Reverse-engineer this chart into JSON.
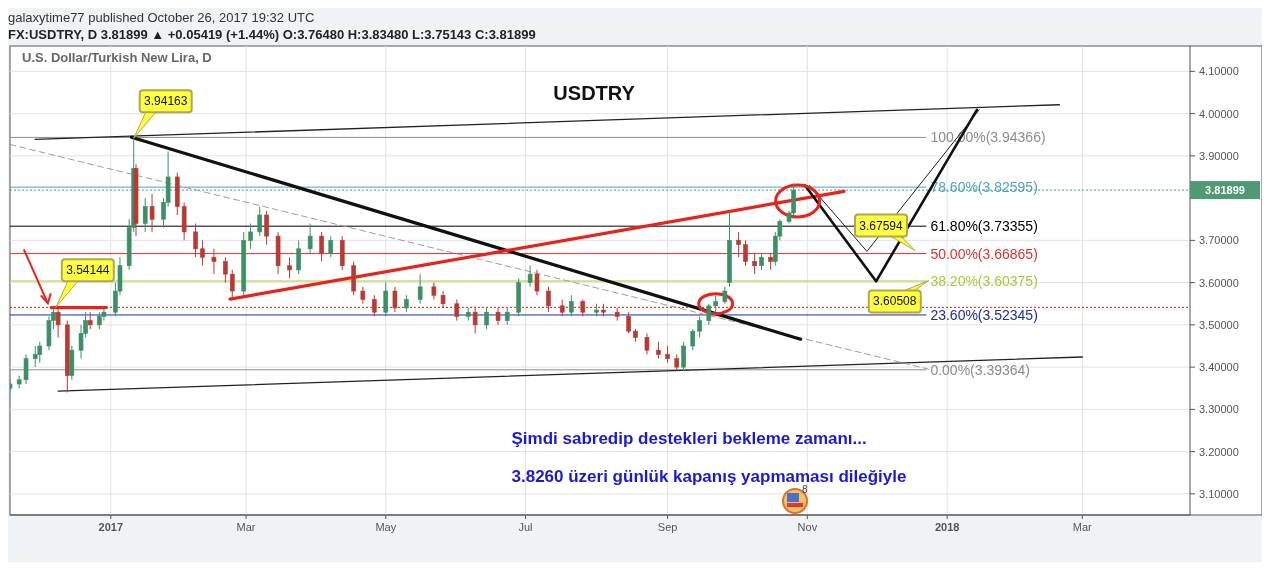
{
  "chart_data": {
    "type": "candlestick",
    "title": "USDTRY",
    "subtitle": "U.S. Dollar/Turkish New Lira, D",
    "x": [
      "2016-11-18",
      "2016-11-22",
      "2016-11-25",
      "2016-11-29",
      "2016-12-01",
      "2016-12-05",
      "2016-12-07",
      "2016-12-09",
      "2016-12-13",
      "2016-12-15",
      "2016-12-19",
      "2016-12-21",
      "2016-12-23",
      "2016-12-27",
      "2016-12-29",
      "2017-01-03",
      "2017-01-05",
      "2017-01-09",
      "2017-01-11",
      "2017-01-12",
      "2017-01-16",
      "2017-01-19",
      "2017-01-24",
      "2017-01-26",
      "2017-01-30",
      "2017-02-02",
      "2017-02-07",
      "2017-02-10",
      "2017-02-15",
      "2017-02-20",
      "2017-02-23",
      "2017-02-28",
      "2017-03-03",
      "2017-03-07",
      "2017-03-10",
      "2017-03-15",
      "2017-03-20",
      "2017-03-24",
      "2017-03-29",
      "2017-04-03",
      "2017-04-07",
      "2017-04-12",
      "2017-04-17",
      "2017-04-21",
      "2017-04-26",
      "2017-05-01",
      "2017-05-05",
      "2017-05-10",
      "2017-05-16",
      "2017-05-22",
      "2017-05-26",
      "2017-06-01",
      "2017-06-06",
      "2017-06-09",
      "2017-06-14",
      "2017-06-19",
      "2017-06-23",
      "2017-06-28",
      "2017-07-03",
      "2017-07-06",
      "2017-07-11",
      "2017-07-17",
      "2017-07-21",
      "2017-07-26",
      "2017-08-01",
      "2017-08-04",
      "2017-08-10",
      "2017-08-15",
      "2017-08-18",
      "2017-08-23",
      "2017-08-28",
      "2017-09-01",
      "2017-09-05",
      "2017-09-08",
      "2017-09-12",
      "2017-09-15",
      "2017-09-19",
      "2017-09-22",
      "2017-09-26",
      "2017-09-28",
      "2017-10-02",
      "2017-10-05",
      "2017-10-09",
      "2017-10-12",
      "2017-10-16",
      "2017-10-18",
      "2017-10-20",
      "2017-10-24",
      "2017-10-26"
    ],
    "ohlc": [
      [
        3.35,
        3.37,
        3.34,
        3.36
      ],
      [
        3.36,
        3.38,
        3.35,
        3.37
      ],
      [
        3.37,
        3.43,
        3.36,
        3.42
      ],
      [
        3.42,
        3.45,
        3.4,
        3.43
      ],
      [
        3.43,
        3.46,
        3.41,
        3.45
      ],
      [
        3.45,
        3.52,
        3.44,
        3.51
      ],
      [
        3.51,
        3.54,
        3.49,
        3.53
      ],
      [
        3.53,
        3.54,
        3.47,
        3.5
      ],
      [
        3.5,
        3.51,
        3.34,
        3.38
      ],
      [
        3.38,
        3.45,
        3.37,
        3.44
      ],
      [
        3.44,
        3.5,
        3.42,
        3.48
      ],
      [
        3.48,
        3.53,
        3.47,
        3.51
      ],
      [
        3.51,
        3.53,
        3.49,
        3.5
      ],
      [
        3.5,
        3.53,
        3.49,
        3.52
      ],
      [
        3.52,
        3.54,
        3.51,
        3.53
      ],
      [
        3.53,
        3.6,
        3.52,
        3.58
      ],
      [
        3.58,
        3.66,
        3.57,
        3.64
      ],
      [
        3.64,
        3.75,
        3.63,
        3.73
      ],
      [
        3.73,
        3.94,
        3.72,
        3.87
      ],
      [
        3.87,
        3.88,
        3.71,
        3.74
      ],
      [
        3.74,
        3.8,
        3.72,
        3.78
      ],
      [
        3.78,
        3.81,
        3.72,
        3.75
      ],
      [
        3.75,
        3.8,
        3.73,
        3.79
      ],
      [
        3.79,
        3.91,
        3.78,
        3.85
      ],
      [
        3.85,
        3.86,
        3.76,
        3.78
      ],
      [
        3.78,
        3.79,
        3.7,
        3.72
      ],
      [
        3.72,
        3.74,
        3.66,
        3.68
      ],
      [
        3.68,
        3.7,
        3.64,
        3.66
      ],
      [
        3.66,
        3.68,
        3.62,
        3.65
      ],
      [
        3.65,
        3.66,
        3.6,
        3.62
      ],
      [
        3.62,
        3.63,
        3.56,
        3.58
      ],
      [
        3.58,
        3.72,
        3.57,
        3.7
      ],
      [
        3.7,
        3.74,
        3.68,
        3.72
      ],
      [
        3.72,
        3.78,
        3.71,
        3.76
      ],
      [
        3.76,
        3.77,
        3.69,
        3.71
      ],
      [
        3.71,
        3.72,
        3.62,
        3.64
      ],
      [
        3.64,
        3.66,
        3.61,
        3.63
      ],
      [
        3.63,
        3.7,
        3.62,
        3.68
      ],
      [
        3.68,
        3.74,
        3.67,
        3.71
      ],
      [
        3.71,
        3.72,
        3.65,
        3.67
      ],
      [
        3.67,
        3.71,
        3.66,
        3.7
      ],
      [
        3.7,
        3.71,
        3.63,
        3.64
      ],
      [
        3.64,
        3.65,
        3.57,
        3.58
      ],
      [
        3.58,
        3.59,
        3.55,
        3.56
      ],
      [
        3.56,
        3.57,
        3.52,
        3.53
      ],
      [
        3.53,
        3.6,
        3.52,
        3.58
      ],
      [
        3.58,
        3.59,
        3.53,
        3.54
      ],
      [
        3.54,
        3.57,
        3.53,
        3.56
      ],
      [
        3.56,
        3.62,
        3.55,
        3.59
      ],
      [
        3.59,
        3.6,
        3.56,
        3.57
      ],
      [
        3.57,
        3.58,
        3.54,
        3.55
      ],
      [
        3.55,
        3.56,
        3.51,
        3.52
      ],
      [
        3.52,
        3.54,
        3.51,
        3.53
      ],
      [
        3.53,
        3.54,
        3.48,
        3.5
      ],
      [
        3.5,
        3.54,
        3.49,
        3.53
      ],
      [
        3.53,
        3.54,
        3.5,
        3.51
      ],
      [
        3.51,
        3.54,
        3.5,
        3.53
      ],
      [
        3.53,
        3.61,
        3.52,
        3.6
      ],
      [
        3.6,
        3.64,
        3.59,
        3.62
      ],
      [
        3.62,
        3.63,
        3.57,
        3.58
      ],
      [
        3.58,
        3.59,
        3.53,
        3.545
      ],
      [
        3.545,
        3.56,
        3.52,
        3.53
      ],
      [
        3.53,
        3.57,
        3.52,
        3.555
      ],
      [
        3.555,
        3.56,
        3.52,
        3.53
      ],
      [
        3.53,
        3.55,
        3.52,
        3.535
      ],
      [
        3.535,
        3.55,
        3.52,
        3.53
      ],
      [
        3.53,
        3.54,
        3.51,
        3.52
      ],
      [
        3.52,
        3.53,
        3.48,
        3.485
      ],
      [
        3.485,
        3.49,
        3.46,
        3.47
      ],
      [
        3.47,
        3.48,
        3.43,
        3.44
      ],
      [
        3.44,
        3.46,
        3.42,
        3.43
      ],
      [
        3.43,
        3.45,
        3.41,
        3.42
      ],
      [
        3.42,
        3.43,
        3.39,
        3.4
      ],
      [
        3.4,
        3.46,
        3.39,
        3.45
      ],
      [
        3.45,
        3.49,
        3.44,
        3.485
      ],
      [
        3.485,
        3.52,
        3.47,
        3.51
      ],
      [
        3.51,
        3.55,
        3.5,
        3.545
      ],
      [
        3.545,
        3.57,
        3.53,
        3.555
      ],
      [
        3.555,
        3.59,
        3.55,
        3.58
      ],
      [
        3.6,
        3.77,
        3.59,
        3.7
      ],
      [
        3.7,
        3.72,
        3.66,
        3.69
      ],
      [
        3.69,
        3.7,
        3.64,
        3.65
      ],
      [
        3.65,
        3.67,
        3.62,
        3.64
      ],
      [
        3.64,
        3.67,
        3.63,
        3.66
      ],
      [
        3.66,
        3.67,
        3.63,
        3.65
      ],
      [
        3.65,
        3.72,
        3.64,
        3.71
      ],
      [
        3.71,
        3.75,
        3.7,
        3.745
      ],
      [
        3.745,
        3.77,
        3.74,
        3.7648
      ],
      [
        3.7648,
        3.8348,
        3.75143,
        3.81899
      ]
    ],
    "series": [
      {
        "type": "line",
        "color": "#222222",
        "x": [
          "2016-11-29",
          "2018-02-19"
        ],
        "values": [
          3.939,
          4.021
        ]
      },
      {
        "type": "line",
        "color": "#222222",
        "x": [
          "2016-12-09",
          "2018-03-01"
        ],
        "values": [
          3.343,
          3.424
        ]
      },
      {
        "type": "line",
        "color": "#9e9e9e",
        "line_style": "dashed",
        "x": [
          "2016-11-18",
          "2017-12-24"
        ],
        "values": [
          3.927,
          3.395
        ]
      },
      {
        "type": "line",
        "color": "#111111",
        "x": [
          "2017-01-10",
          "2017-10-29"
        ],
        "values": [
          3.944,
          3.466
        ]
      },
      {
        "type": "line",
        "color": "#e8231c",
        "x": [
          "2017-02-22",
          "2017-11-17"
        ],
        "values": [
          3.561,
          3.816
        ]
      },
      {
        "type": "line",
        "color": "#e8231c",
        "x": [
          "2016-12-06",
          "2016-12-30"
        ],
        "values": [
          3.541,
          3.541
        ]
      },
      {
        "type": "line",
        "color": "#111111",
        "x": [
          "2017-10-31",
          "2017-12-01",
          "2018-01-14"
        ],
        "values": [
          3.83,
          3.603,
          4.009
        ]
      },
      {
        "type": "line",
        "color": "#222222",
        "x": [
          "2017-11-02",
          "2017-11-27",
          "2018-01-15"
        ],
        "values": [
          3.83,
          3.674,
          4.009
        ]
      }
    ],
    "xlim": [
      "2016-11-18",
      "2018-04-17"
    ],
    "xticks": [
      {
        "value": "2017-01-01",
        "label": "2017"
      },
      {
        "value": "2017-03-01",
        "label": "Mar"
      },
      {
        "value": "2017-05-01",
        "label": "May"
      },
      {
        "value": "2017-07-01",
        "label": "Jul"
      },
      {
        "value": "2017-09-01",
        "label": "Sep"
      },
      {
        "value": "2017-11-01",
        "label": "Nov"
      },
      {
        "value": "2018-01-01",
        "label": "2018"
      },
      {
        "value": "2018-03-01",
        "label": "Mar"
      }
    ],
    "ylim": [
      3.05,
      4.16
    ],
    "yticks": [
      {
        "value": 3.1,
        "label": "3.10000"
      },
      {
        "value": 3.2,
        "label": "3.20000"
      },
      {
        "value": 3.3,
        "label": "3.30000"
      },
      {
        "value": 3.4,
        "label": "3.40000"
      },
      {
        "value": 3.5,
        "label": "3.50000"
      },
      {
        "value": 3.6,
        "label": "3.60000"
      },
      {
        "value": 3.7,
        "label": "3.70000"
      },
      {
        "value": 3.9,
        "label": "3.90000"
      },
      {
        "value": 4.0,
        "label": "4.00000"
      },
      {
        "value": 4.1,
        "label": "4.10000"
      }
    ],
    "grid": true,
    "ref_lines": [
      {
        "axis": "y",
        "value": 3.94366,
        "label": "100.00%(3.94366)",
        "color": "#8c8c8c",
        "line_style": "solid"
      },
      {
        "axis": "y",
        "value": 3.82595,
        "label": "78.60%(3.82595)",
        "color": "#4aa3c8",
        "line_style": "solid"
      },
      {
        "axis": "y",
        "value": 3.73355,
        "label": "61.80%(3.73355)",
        "color": "#000000",
        "line_style": "solid"
      },
      {
        "axis": "y",
        "value": 3.66865,
        "label": "50.00%(3.66865)",
        "color": "#e03030",
        "line_style": "solid"
      },
      {
        "axis": "y",
        "value": 3.60375,
        "label": "38.20%(3.60375)",
        "color": "#a8c83c",
        "line_style": "solid"
      },
      {
        "axis": "y",
        "value": 3.52345,
        "label": "23.60%(3.52345)",
        "color": "#1c2ca0",
        "line_style": "solid"
      },
      {
        "axis": "y",
        "value": 3.39364,
        "label": "0.00%(3.39364)",
        "color": "#8c8c8c",
        "line_style": "solid"
      },
      {
        "axis": "y",
        "value": 3.81899,
        "label": "3.81899",
        "color": "#4f9a74",
        "line_style": "dotted"
      },
      {
        "axis": "y",
        "value": 3.54144,
        "label": null,
        "color": "#d02020",
        "line_style": "dotted"
      }
    ],
    "annotations": [
      "galaxytime77 published October 26, 2017 19:32 UTC",
      "FX:USDTRY, D  3.81899 ▲ +0.05419 (+1.44%)  O:3.76480  H:3.83480  L:3.75143  C:3.81899",
      "Şimdi sabredip destekleri bekleme zamanı...",
      "3.8260 üzeri günlük kapanış yapmaması dileğiyle",
      "8",
      {
        "text": "3.94163",
        "x": "2017-01-11",
        "y": 3.94163
      },
      {
        "text": "3.54144",
        "x": "2016-12-08",
        "y": 3.54144
      },
      {
        "text": "3.67594",
        "x": "2017-12-18",
        "y": 3.67594
      },
      {
        "text": "3.60508",
        "x": "2017-12-24",
        "y": 3.60508
      }
    ]
  }
}
